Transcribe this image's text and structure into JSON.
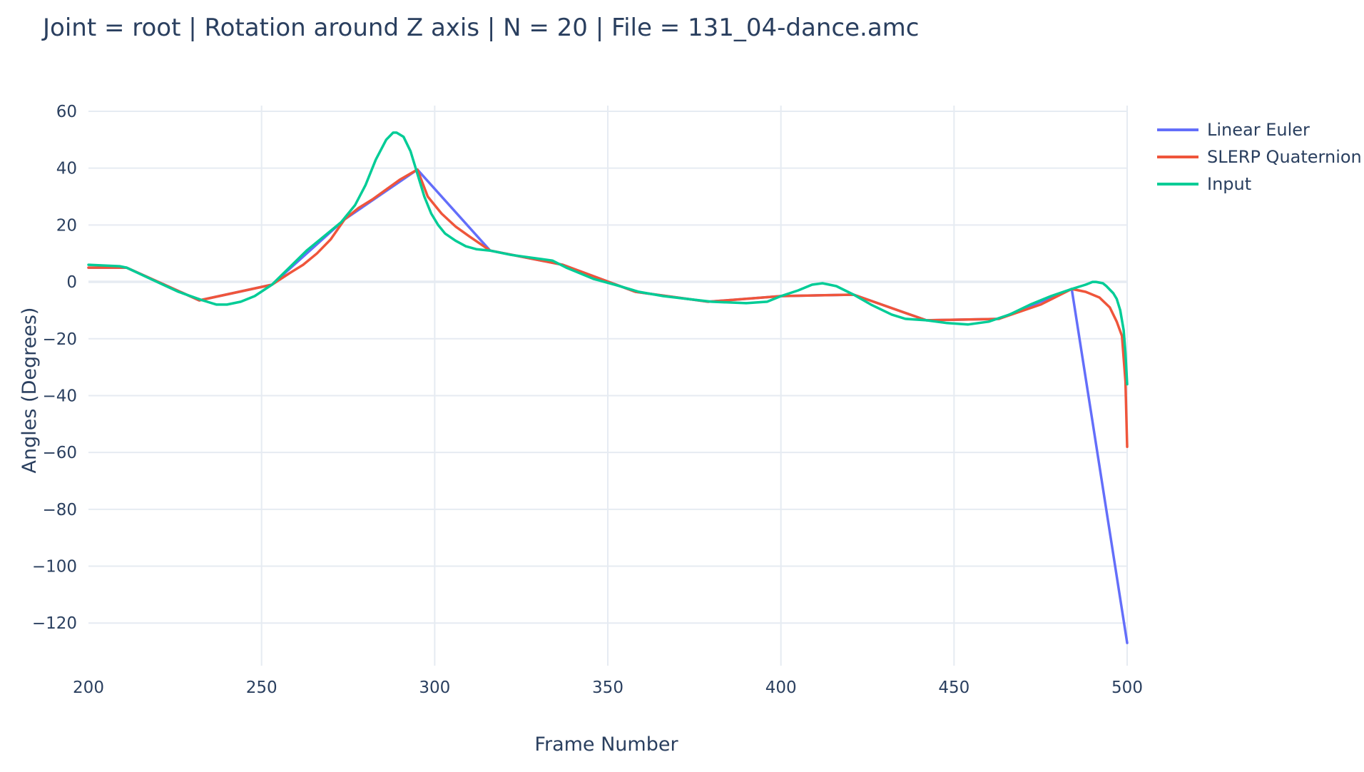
{
  "chart_data": {
    "type": "line",
    "title": "Joint = root | Rotation around Z axis | N = 20 | File = 131_04-dance.amc",
    "xlabel": "Frame Number",
    "ylabel": "Angles (Degrees)",
    "xlim": [
      200,
      500
    ],
    "ylim": [
      -135,
      62
    ],
    "xticks": [
      200,
      250,
      300,
      350,
      400,
      450,
      500
    ],
    "yticks": [
      60,
      40,
      20,
      0,
      -20,
      -40,
      -60,
      -80,
      -100,
      -120
    ],
    "xtick_labels": [
      "200",
      "250",
      "300",
      "350",
      "400",
      "450",
      "500"
    ],
    "ytick_labels": [
      "60",
      "40",
      "20",
      "0",
      "−20",
      "−40",
      "−60",
      "−80",
      "−100",
      "−120"
    ],
    "grid": true,
    "legend_position": "top-right",
    "series": [
      {
        "name": "Linear Euler",
        "color": "#636efa",
        "x": [
          200,
          211,
          232,
          253,
          274,
          295,
          316,
          337,
          358,
          379,
          400,
          421,
          442,
          463,
          484,
          500
        ],
        "y": [
          5,
          5,
          -6.5,
          -1,
          22,
          39.5,
          11,
          6,
          -3.5,
          -7,
          -5,
          -4.5,
          -13.5,
          -13,
          -2.5,
          -127
        ]
      },
      {
        "name": "SLERP Quaternion",
        "color": "#ef553b",
        "x": [
          200,
          211,
          232,
          253,
          258,
          262,
          266,
          270,
          274,
          278,
          282,
          286,
          290,
          295,
          298,
          302,
          306,
          310,
          316,
          337,
          358,
          379,
          400,
          421,
          442,
          463,
          475,
          484,
          488,
          492,
          495,
          497,
          498.5,
          499.5,
          500
        ],
        "y": [
          5,
          5,
          -6.5,
          -1,
          3,
          6,
          10,
          15,
          22,
          26,
          29,
          32.5,
          36,
          39.5,
          30,
          24,
          19.5,
          16,
          11,
          6,
          -3.5,
          -7,
          -5,
          -4.5,
          -13.5,
          -13,
          -8,
          -2.5,
          -3.5,
          -5.5,
          -9,
          -14,
          -19,
          -35,
          -58
        ]
      },
      {
        "name": "Input",
        "color": "#00cc96",
        "x": [
          200,
          209,
          211,
          218,
          226,
          233,
          237,
          240,
          244,
          248,
          253,
          258,
          263,
          268,
          273,
          277,
          280,
          283,
          286,
          288,
          289,
          291,
          293,
          295,
          297,
          299,
          301,
          303,
          306,
          309,
          312,
          316,
          322,
          328,
          334,
          338,
          346,
          352,
          359,
          366,
          373,
          380,
          390,
          396,
          400,
          405,
          409,
          412,
          416,
          421,
          426,
          432,
          436,
          442,
          448,
          454,
          460,
          466,
          472,
          478,
          484,
          488,
          490,
          491,
          493,
          494,
          496,
          497,
          498,
          499,
          499.5,
          500
        ],
        "y": [
          6,
          5.5,
          5,
          1,
          -3.5,
          -6.5,
          -8,
          -8,
          -7,
          -5,
          -1,
          5,
          11,
          16,
          21,
          27,
          34,
          43,
          50,
          52.5,
          52.5,
          51,
          46,
          38,
          30,
          24,
          20,
          17,
          14.5,
          12.5,
          11.5,
          11,
          9.5,
          8.5,
          7.5,
          5,
          1,
          -1,
          -3.5,
          -5,
          -6,
          -7,
          -7.5,
          -7,
          -5,
          -3,
          -1,
          -0.5,
          -1.5,
          -4.5,
          -8,
          -11.5,
          -13,
          -13.5,
          -14.5,
          -15,
          -14,
          -11.5,
          -8,
          -5,
          -2.5,
          -1,
          0,
          0,
          -0.5,
          -1.5,
          -4,
          -6,
          -10,
          -17,
          -25,
          -36
        ]
      }
    ]
  }
}
